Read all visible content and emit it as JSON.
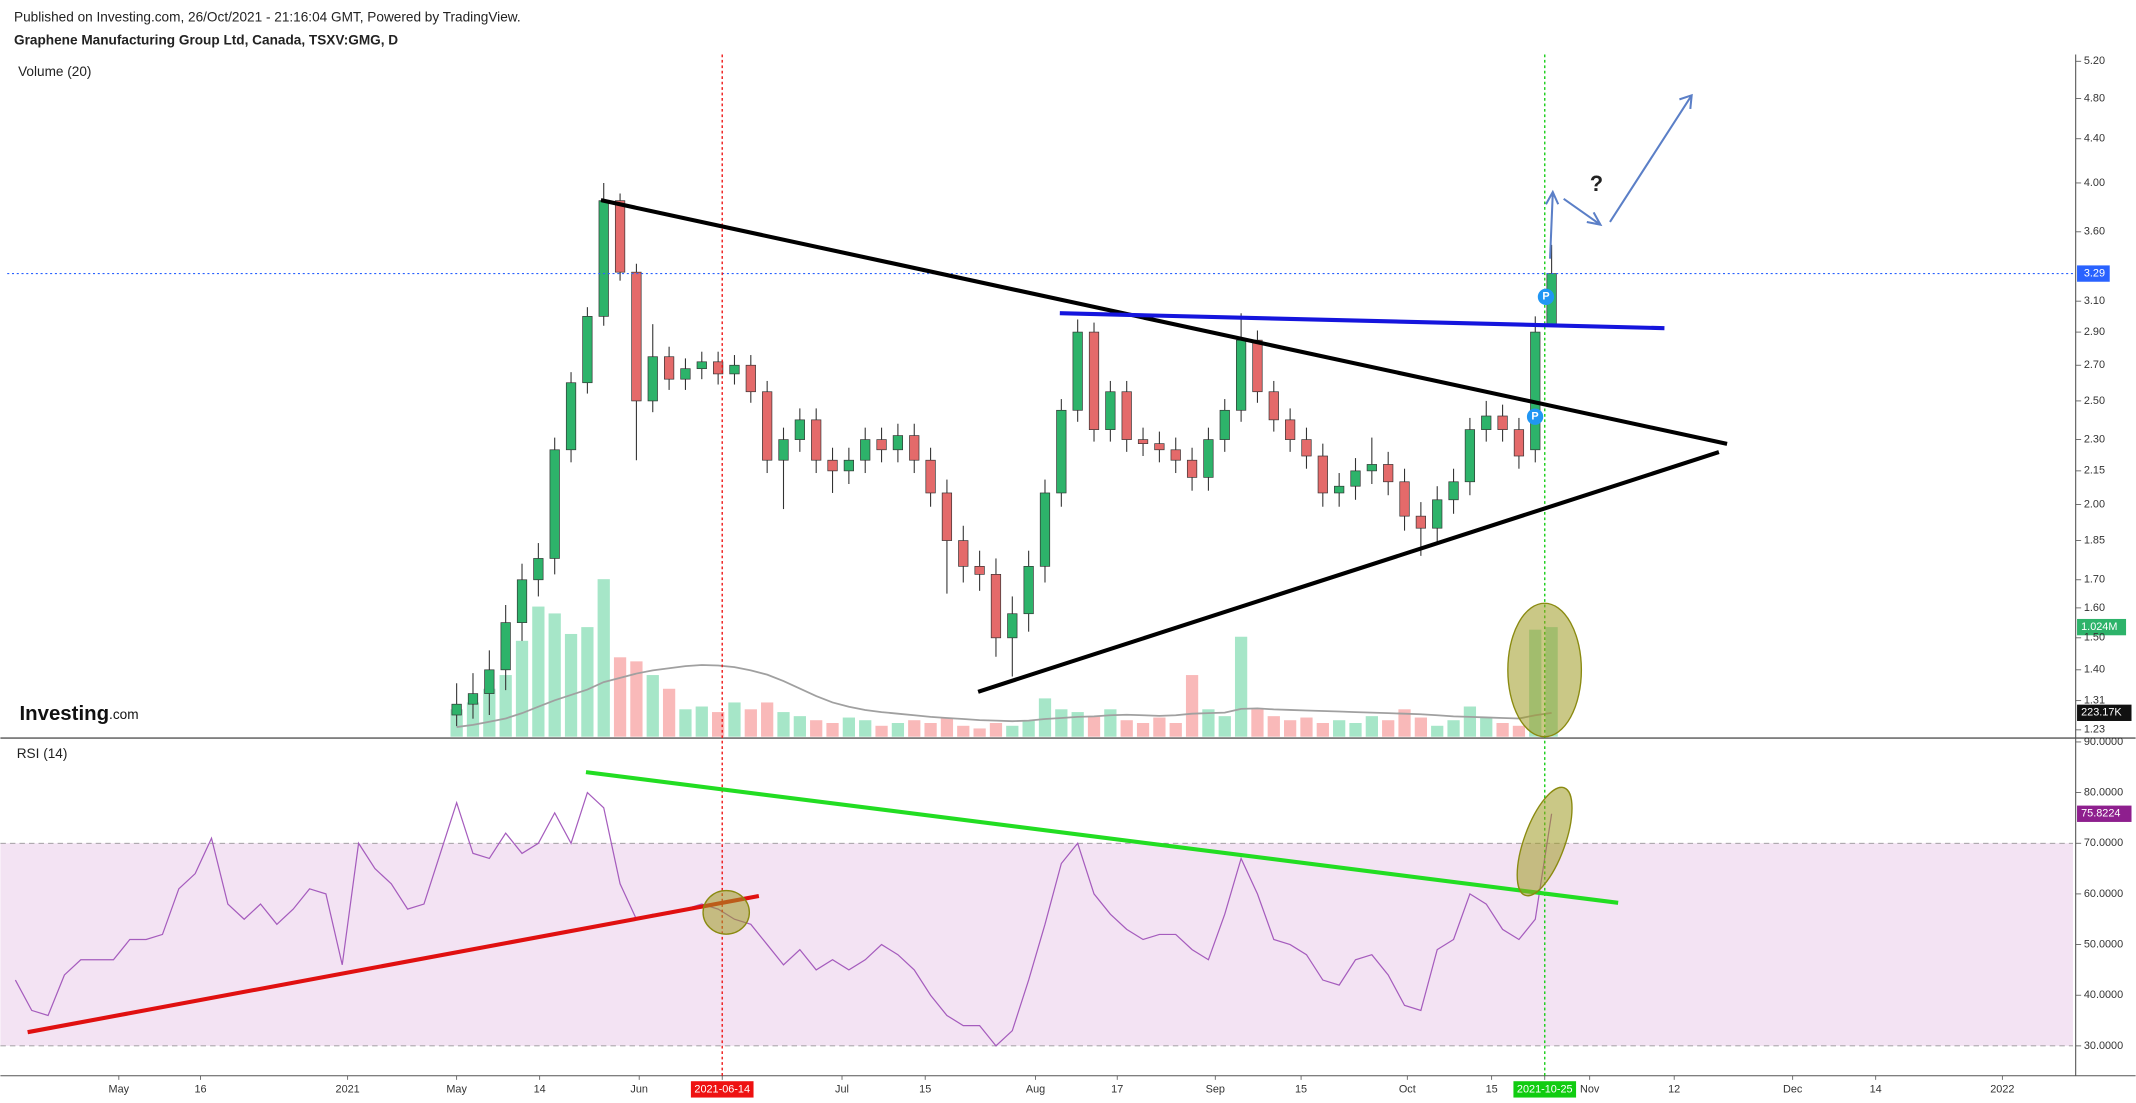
{
  "header": {
    "source": "Published on Investing.com, 26/Oct/2021 - 21:16:04 GMT, Powered by TradingView.",
    "title": "Graphene Manufacturing Group Ltd, Canada, TSXV:GMG, D",
    "logo_main": "Investing",
    "logo_suffix": ".com"
  },
  "chart_data": [
    {
      "type": "candlestick",
      "log_scale": true,
      "grid": false,
      "up_color": "#2db36a",
      "down_color": "#e46a6a",
      "last_price_color": "#2962ff",
      "annotations": [
        "?",
        "P",
        "P"
      ],
      "xlim": [
        -0.5,
        125.9
      ],
      "ylim": [
        1.212,
        5.246
      ],
      "yticks": [
        {
          "value": 5.2,
          "label": "5.20"
        },
        {
          "value": 4.8,
          "label": "4.80"
        },
        {
          "value": 4.4,
          "label": "4.40"
        },
        {
          "value": 4,
          "label": "4.00"
        },
        {
          "value": 3.6,
          "label": "3.60"
        },
        {
          "value": 3.1,
          "label": "3.10"
        },
        {
          "value": 2.9,
          "label": "2.90"
        },
        {
          "value": 2.7,
          "label": "2.70"
        },
        {
          "value": 2.5,
          "label": "2.50"
        },
        {
          "value": 2.3,
          "label": "2.30"
        },
        2.15,
        {
          "value": 2,
          "label": "2.00"
        },
        1.85,
        {
          "value": 1.7,
          "label": "1.70"
        },
        {
          "value": 1.6,
          "label": "1.60"
        },
        {
          "value": 1.5,
          "label": "1.50"
        },
        {
          "value": 1.4,
          "label": "1.40"
        },
        1.31,
        1.23
      ],
      "open": [
        1.27,
        1.3,
        1.33,
        1.4,
        1.55,
        1.7,
        1.78,
        2.25,
        2.6,
        3.0,
        3.85,
        3.3,
        2.5,
        2.75,
        2.62,
        2.68,
        2.72,
        2.65,
        2.7,
        2.55,
        2.2,
        2.3,
        2.4,
        2.2,
        2.15,
        2.2,
        2.3,
        2.25,
        2.32,
        2.2,
        2.05,
        1.85,
        1.75,
        1.72,
        1.5,
        1.58,
        1.75,
        2.05,
        2.45,
        2.9,
        2.35,
        2.55,
        2.3,
        2.28,
        2.25,
        2.2,
        2.12,
        2.3,
        2.45,
        2.85,
        2.55,
        2.4,
        2.3,
        2.22,
        2.05,
        2.08,
        2.15,
        2.18,
        2.1,
        1.95,
        1.9,
        2.02,
        2.1,
        2.35,
        2.42,
        2.35,
        2.25,
        2.95
      ],
      "high": [
        1.36,
        1.39,
        1.46,
        1.61,
        1.76,
        1.84,
        2.31,
        2.66,
        3.06,
        4.0,
        3.91,
        3.36,
        2.95,
        2.81,
        2.74,
        2.78,
        2.78,
        2.76,
        2.76,
        2.61,
        2.36,
        2.46,
        2.46,
        2.26,
        2.26,
        2.36,
        2.36,
        2.38,
        2.38,
        2.26,
        2.11,
        1.91,
        1.81,
        1.78,
        1.64,
        1.81,
        2.11,
        2.51,
        2.98,
        2.96,
        2.61,
        2.61,
        2.36,
        2.34,
        2.31,
        2.26,
        2.36,
        2.51,
        3.02,
        2.91,
        2.61,
        2.46,
        2.36,
        2.28,
        2.14,
        2.21,
        2.31,
        2.24,
        2.16,
        2.01,
        2.08,
        2.16,
        2.41,
        2.5,
        2.48,
        2.41,
        3.0,
        3.5
      ],
      "low": [
        1.24,
        1.26,
        1.27,
        1.34,
        1.49,
        1.64,
        1.72,
        2.19,
        2.54,
        2.94,
        3.24,
        2.2,
        2.44,
        2.56,
        2.56,
        2.62,
        2.59,
        2.59,
        2.49,
        2.14,
        1.98,
        2.24,
        2.14,
        2.05,
        2.09,
        2.14,
        2.19,
        2.19,
        2.14,
        1.99,
        1.65,
        1.69,
        1.66,
        1.44,
        1.38,
        1.52,
        1.69,
        1.99,
        2.39,
        2.29,
        2.29,
        2.24,
        2.22,
        2.19,
        2.14,
        2.06,
        2.06,
        2.24,
        2.39,
        2.49,
        2.34,
        2.24,
        2.16,
        1.99,
        1.99,
        2.02,
        2.09,
        2.04,
        1.89,
        1.79,
        1.84,
        1.96,
        2.04,
        2.29,
        2.29,
        2.16,
        2.19,
        2.95
      ],
      "close": [
        1.3,
        1.33,
        1.4,
        1.55,
        1.7,
        1.78,
        2.25,
        2.6,
        3.0,
        3.85,
        3.3,
        2.5,
        2.75,
        2.62,
        2.68,
        2.72,
        2.65,
        2.7,
        2.55,
        2.2,
        2.3,
        2.4,
        2.2,
        2.15,
        2.2,
        2.3,
        2.25,
        2.32,
        2.2,
        2.05,
        1.85,
        1.75,
        1.72,
        1.5,
        1.58,
        1.75,
        2.05,
        2.45,
        2.9,
        2.35,
        2.55,
        2.3,
        2.28,
        2.25,
        2.2,
        2.12,
        2.3,
        2.45,
        2.85,
        2.55,
        2.4,
        2.3,
        2.22,
        2.05,
        2.08,
        2.15,
        2.18,
        2.1,
        1.95,
        1.9,
        2.02,
        2.1,
        2.35,
        2.42,
        2.35,
        2.22,
        2.9,
        3.29
      ],
      "volume": {
        "name": "Volume (20)",
        "up_color": "#a6e6c8",
        "down_color": "#f9b9b9",
        "ylim": [
          0,
          6350000
        ],
        "last_label": "1.024M",
        "values": [
          256000,
          320000,
          448000,
          576000,
          896000,
          1216000,
          1152000,
          960000,
          1024000,
          1472000,
          742000,
          704000,
          576000,
          448000,
          256000,
          282000,
          230000,
          320000,
          256000,
          320000,
          230000,
          192000,
          154000,
          128000,
          179000,
          154000,
          102000,
          128000,
          154000,
          128000,
          179000,
          102000,
          77000,
          128000,
          102000,
          154000,
          358000,
          256000,
          230000,
          192000,
          256000,
          154000,
          128000,
          179000,
          128000,
          576000,
          256000,
          192000,
          934000,
          256000,
          192000,
          154000,
          179000,
          128000,
          154000,
          128000,
          192000,
          154000,
          256000,
          179000,
          102000,
          154000,
          282000,
          179000,
          128000,
          102000,
          1000000,
          1024000
        ],
        "ma": {
          "color": "#a0a0a0",
          "last_label": "223.17K",
          "values": [
            90000,
            110000,
            140000,
            170000,
            220000,
            280000,
            340000,
            390000,
            440000,
            510000,
            550000,
            590000,
            620000,
            640000,
            660000,
            670000,
            665000,
            650000,
            620000,
            580000,
            520000,
            450000,
            380000,
            320000,
            280000,
            250000,
            230000,
            215000,
            200000,
            185000,
            175000,
            165000,
            155000,
            150000,
            145000,
            150000,
            165000,
            175000,
            185000,
            190000,
            200000,
            205000,
            200000,
            195000,
            200000,
            215000,
            220000,
            225000,
            260000,
            265000,
            255000,
            250000,
            245000,
            240000,
            235000,
            230000,
            225000,
            220000,
            215000,
            210000,
            200000,
            190000,
            185000,
            180000,
            175000,
            170000,
            200000,
            223170
          ]
        }
      }
    },
    {
      "type": "line",
      "title": "RSI (14)",
      "color": "#a55cbd",
      "band_color": "#f3e3f3",
      "bands": [
        30,
        70
      ],
      "xlim": [
        -0.5,
        125.9
      ],
      "ylim": [
        24.1,
        90.5
      ],
      "yticks": [
        {
          "value": 90,
          "label": "90.0000"
        },
        {
          "value": 80,
          "label": "80.0000"
        },
        {
          "value": 70,
          "label": "70.0000"
        },
        {
          "value": 60,
          "label": "60.0000"
        },
        {
          "value": 50,
          "label": "50.0000"
        },
        {
          "value": 40,
          "label": "40.0000"
        },
        {
          "value": 30,
          "label": "30.0000"
        }
      ],
      "xticks": [
        {
          "value": 6.33,
          "label": "May"
        },
        {
          "value": 11.33,
          "label": "16"
        },
        {
          "value": 20.33,
          "label": "2021"
        },
        {
          "value": 27,
          "label": "May"
        },
        {
          "value": 32.08,
          "label": "14"
        },
        {
          "value": 38.17,
          "label": "Jun"
        },
        {
          "value": 43.25,
          "label": "2021-06-14"
        },
        {
          "value": 50.58,
          "label": "Jul"
        },
        {
          "value": 55.67,
          "label": "15"
        },
        {
          "value": 62.42,
          "label": "Aug"
        },
        {
          "value": 67.42,
          "label": "17"
        },
        {
          "value": 73.42,
          "label": "Sep"
        },
        {
          "value": 78.67,
          "label": "15"
        },
        {
          "value": 85.17,
          "label": "Oct"
        },
        {
          "value": 90.33,
          "label": "15"
        },
        {
          "value": 93.58,
          "label": "2021-10-25"
        },
        {
          "value": 96.33,
          "label": "Nov"
        },
        {
          "value": 101.5,
          "label": "12"
        },
        {
          "value": 108.75,
          "label": "Dec"
        },
        {
          "value": 113.83,
          "label": "14"
        },
        {
          "value": 121.58,
          "label": "2022"
        }
      ],
      "vlines": [
        {
          "value": 43.25,
          "color": "#ee1111"
        },
        {
          "value": 93.58,
          "color": "#11cc11"
        }
      ],
      "values": [
        43,
        37,
        36,
        44,
        47,
        47,
        47,
        51,
        51,
        52,
        61,
        64,
        71,
        58,
        55,
        58,
        54,
        57,
        61,
        60,
        46,
        70,
        65,
        62,
        57,
        58,
        68,
        78,
        68,
        67,
        72,
        68,
        70,
        76,
        70,
        80,
        77,
        62,
        55,
        56,
        56,
        57,
        58,
        57,
        55,
        54,
        50,
        46,
        49,
        45,
        47,
        45,
        47,
        50,
        48,
        45,
        40,
        36,
        34,
        34,
        30,
        33,
        43,
        54,
        66,
        70,
        60,
        56,
        53,
        51,
        52,
        52,
        49,
        47,
        56,
        67,
        60,
        51,
        50,
        48,
        43,
        42,
        47,
        48,
        44,
        38,
        37,
        49,
        51,
        60,
        58,
        53,
        51,
        55,
        75.8224
      ]
    }
  ]
}
